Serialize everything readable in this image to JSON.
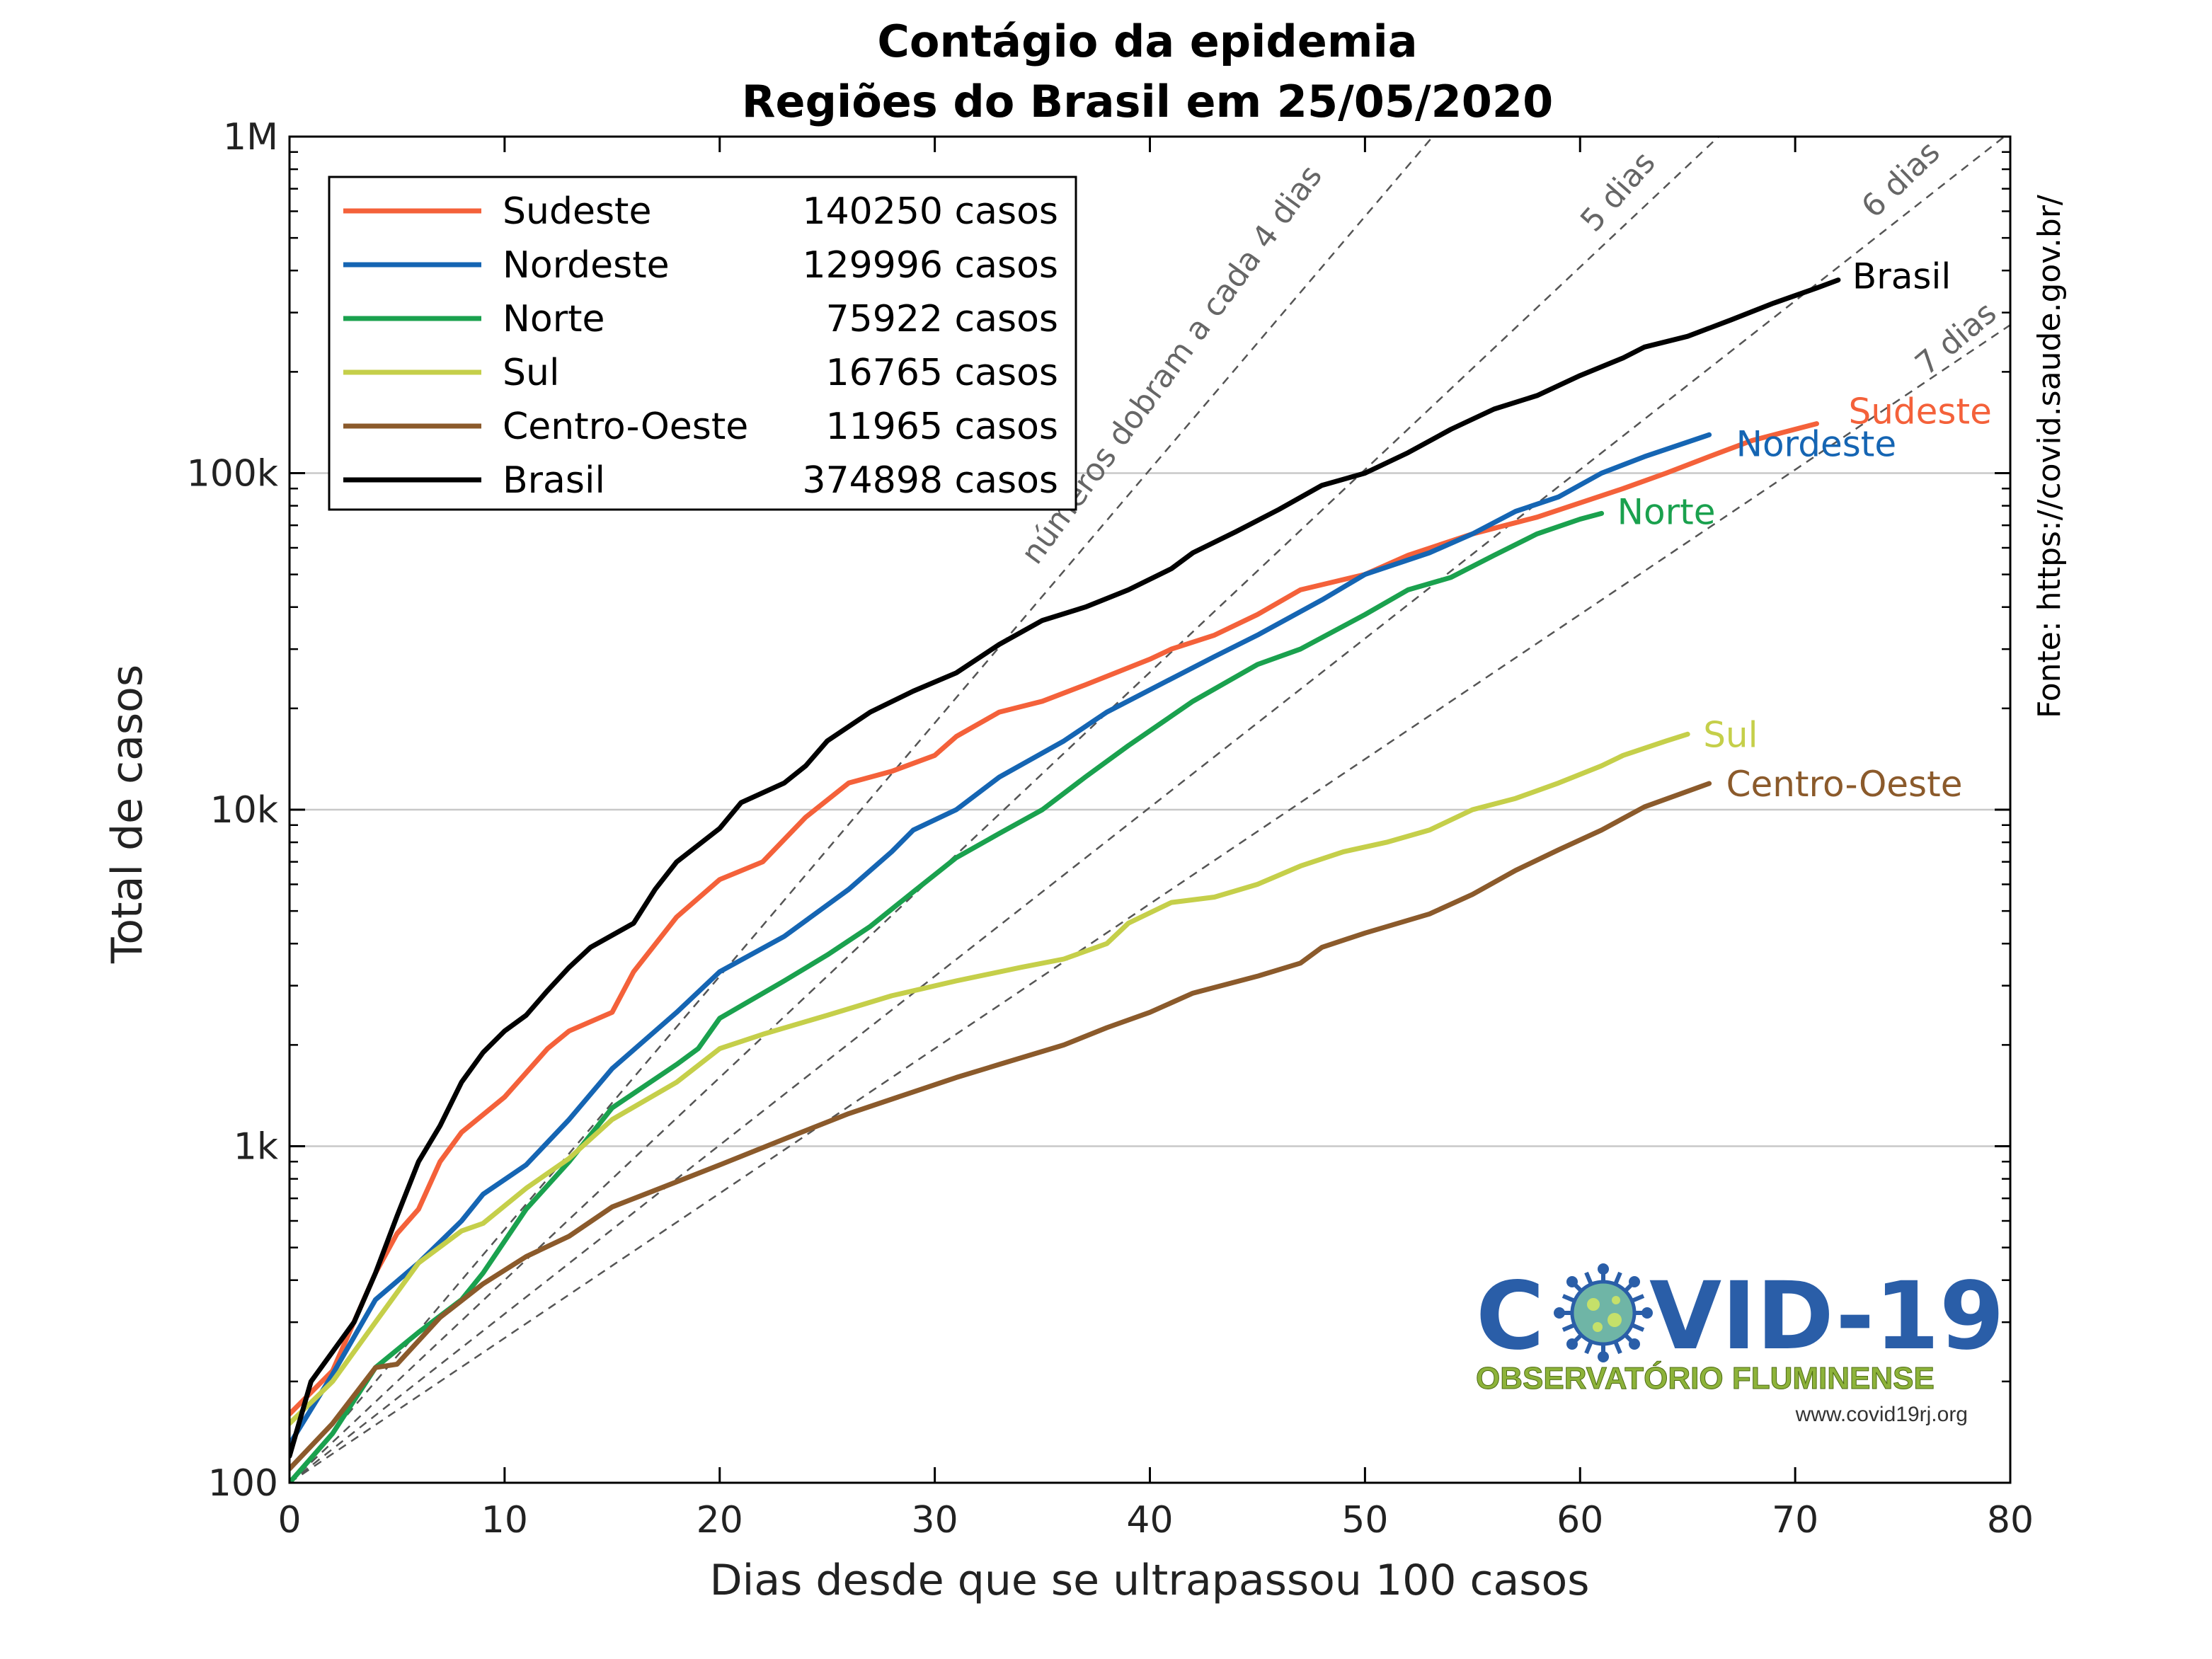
{
  "chart_data": {
    "type": "line",
    "title": "Contágio da epidemia",
    "subtitle": "Regiões do Brasil em 25/05/2020",
    "xlabel": "Dias desde que se ultrapassou 100 casos",
    "ylabel": "Total de casos",
    "xlim": [
      0,
      80
    ],
    "ylim": [
      100,
      1000000
    ],
    "yscale": "log",
    "grid": "horizontal major",
    "x_ticks": [
      "0",
      "10",
      "20",
      "30",
      "40",
      "50",
      "60",
      "70",
      "80"
    ],
    "y_ticks": [
      "100",
      "1k",
      "10k",
      "100k",
      "1M"
    ],
    "legend_position": "top-left",
    "source_note": "Fonte: https://covid.saude.gov.br/",
    "series": [
      {
        "name": "Sudeste",
        "color": "#f4613a",
        "legend_label": "Sudeste",
        "total_label": "140250 casos",
        "end_label": "Sudeste",
        "points": [
          [
            0,
            160
          ],
          [
            2,
            215
          ],
          [
            4,
            420
          ],
          [
            5,
            550
          ],
          [
            6,
            650
          ],
          [
            7,
            900
          ],
          [
            8,
            1100
          ],
          [
            10,
            1400
          ],
          [
            12,
            1950
          ],
          [
            13,
            2200
          ],
          [
            15,
            2500
          ],
          [
            16,
            3300
          ],
          [
            18,
            4800
          ],
          [
            20,
            6200
          ],
          [
            22,
            7000
          ],
          [
            24,
            9500
          ],
          [
            26,
            12000
          ],
          [
            28,
            13000
          ],
          [
            30,
            14500
          ],
          [
            31,
            16500
          ],
          [
            33,
            19500
          ],
          [
            35,
            21000
          ],
          [
            37,
            23500
          ],
          [
            40,
            28000
          ],
          [
            41,
            30000
          ],
          [
            43,
            33000
          ],
          [
            45,
            38000
          ],
          [
            47,
            45000
          ],
          [
            50,
            50000
          ],
          [
            52,
            57000
          ],
          [
            55,
            66000
          ],
          [
            58,
            74000
          ],
          [
            62,
            90000
          ],
          [
            64,
            100000
          ],
          [
            66,
            112000
          ],
          [
            68,
            125000
          ],
          [
            70,
            135000
          ],
          [
            71,
            140250
          ]
        ]
      },
      {
        "name": "Nordeste",
        "color": "#1565b3",
        "legend_label": "Nordeste",
        "total_label": "129996 casos",
        "end_label": "Nordeste",
        "points": [
          [
            0,
            130
          ],
          [
            2,
            210
          ],
          [
            4,
            350
          ],
          [
            6,
            450
          ],
          [
            8,
            600
          ],
          [
            9,
            720
          ],
          [
            11,
            880
          ],
          [
            13,
            1200
          ],
          [
            15,
            1700
          ],
          [
            18,
            2500
          ],
          [
            20,
            3300
          ],
          [
            23,
            4200
          ],
          [
            26,
            5800
          ],
          [
            28,
            7500
          ],
          [
            29,
            8700
          ],
          [
            31,
            10000
          ],
          [
            33,
            12500
          ],
          [
            36,
            16000
          ],
          [
            38,
            19500
          ],
          [
            41,
            24500
          ],
          [
            43,
            28500
          ],
          [
            45,
            33000
          ],
          [
            48,
            42000
          ],
          [
            50,
            50000
          ],
          [
            53,
            58000
          ],
          [
            55,
            66000
          ],
          [
            57,
            77000
          ],
          [
            59,
            85000
          ],
          [
            61,
            100000
          ],
          [
            63,
            112000
          ],
          [
            66,
            129996
          ]
        ]
      },
      {
        "name": "Norte",
        "color": "#1aa14e",
        "legend_label": "Norte",
        "total_label": "75922 casos",
        "end_label": "Norte",
        "points": [
          [
            0,
            100
          ],
          [
            2,
            140
          ],
          [
            4,
            220
          ],
          [
            6,
            280
          ],
          [
            8,
            350
          ],
          [
            9,
            420
          ],
          [
            11,
            650
          ],
          [
            13,
            900
          ],
          [
            15,
            1300
          ],
          [
            18,
            1750
          ],
          [
            19,
            1950
          ],
          [
            20,
            2400
          ],
          [
            23,
            3100
          ],
          [
            25,
            3700
          ],
          [
            27,
            4500
          ],
          [
            29,
            5700
          ],
          [
            31,
            7200
          ],
          [
            33,
            8500
          ],
          [
            35,
            10000
          ],
          [
            37,
            12500
          ],
          [
            39,
            15500
          ],
          [
            42,
            21000
          ],
          [
            45,
            27000
          ],
          [
            47,
            30000
          ],
          [
            50,
            38000
          ],
          [
            52,
            45000
          ],
          [
            54,
            49000
          ],
          [
            56,
            57000
          ],
          [
            58,
            66000
          ],
          [
            60,
            73000
          ],
          [
            61,
            75922
          ]
        ]
      },
      {
        "name": "Sul",
        "color": "#c5cf4a",
        "legend_label": "Sul",
        "total_label": "16765 casos",
        "end_label": "Sul",
        "points": [
          [
            0,
            150
          ],
          [
            2,
            200
          ],
          [
            4,
            300
          ],
          [
            6,
            450
          ],
          [
            8,
            560
          ],
          [
            9,
            590
          ],
          [
            11,
            750
          ],
          [
            13,
            920
          ],
          [
            15,
            1200
          ],
          [
            18,
            1550
          ],
          [
            20,
            1950
          ],
          [
            22,
            2150
          ],
          [
            25,
            2450
          ],
          [
            28,
            2800
          ],
          [
            31,
            3100
          ],
          [
            34,
            3400
          ],
          [
            36,
            3600
          ],
          [
            38,
            4000
          ],
          [
            39,
            4600
          ],
          [
            41,
            5300
          ],
          [
            43,
            5500
          ],
          [
            45,
            6000
          ],
          [
            47,
            6800
          ],
          [
            49,
            7500
          ],
          [
            51,
            8000
          ],
          [
            53,
            8700
          ],
          [
            55,
            10000
          ],
          [
            57,
            10800
          ],
          [
            59,
            12000
          ],
          [
            61,
            13500
          ],
          [
            62,
            14500
          ],
          [
            64,
            16000
          ],
          [
            65,
            16765
          ]
        ]
      },
      {
        "name": "Centro-Oeste",
        "color": "#8b5a2b",
        "legend_label": "Centro-Oeste",
        "total_label": "11965 casos",
        "end_label": "Centro-Oeste",
        "points": [
          [
            0,
            110
          ],
          [
            2,
            150
          ],
          [
            4,
            220
          ],
          [
            5,
            225
          ],
          [
            7,
            310
          ],
          [
            9,
            390
          ],
          [
            11,
            470
          ],
          [
            13,
            540
          ],
          [
            15,
            660
          ],
          [
            17,
            740
          ],
          [
            20,
            880
          ],
          [
            23,
            1050
          ],
          [
            26,
            1250
          ],
          [
            29,
            1450
          ],
          [
            31,
            1600
          ],
          [
            33,
            1750
          ],
          [
            36,
            2000
          ],
          [
            38,
            2250
          ],
          [
            40,
            2500
          ],
          [
            42,
            2850
          ],
          [
            45,
            3200
          ],
          [
            47,
            3500
          ],
          [
            48,
            3900
          ],
          [
            50,
            4300
          ],
          [
            53,
            4900
          ],
          [
            55,
            5600
          ],
          [
            57,
            6600
          ],
          [
            59,
            7600
          ],
          [
            61,
            8700
          ],
          [
            63,
            10200
          ],
          [
            66,
            11965
          ]
        ]
      },
      {
        "name": "Brasil",
        "color": "#000000",
        "legend_label": "Brasil",
        "total_label": "374898 casos",
        "end_label": "Brasil",
        "points": [
          [
            0,
            120
          ],
          [
            1,
            200
          ],
          [
            3,
            300
          ],
          [
            4,
            420
          ],
          [
            5,
            620
          ],
          [
            6,
            900
          ],
          [
            7,
            1150
          ],
          [
            8,
            1550
          ],
          [
            9,
            1900
          ],
          [
            10,
            2200
          ],
          [
            11,
            2450
          ],
          [
            12,
            2900
          ],
          [
            13,
            3400
          ],
          [
            14,
            3900
          ],
          [
            16,
            4600
          ],
          [
            17,
            5800
          ],
          [
            18,
            7000
          ],
          [
            20,
            8800
          ],
          [
            21,
            10500
          ],
          [
            23,
            12000
          ],
          [
            24,
            13500
          ],
          [
            25,
            16000
          ],
          [
            27,
            19500
          ],
          [
            29,
            22500
          ],
          [
            31,
            25500
          ],
          [
            33,
            31000
          ],
          [
            35,
            36500
          ],
          [
            37,
            40000
          ],
          [
            39,
            45000
          ],
          [
            41,
            52000
          ],
          [
            42,
            58000
          ],
          [
            44,
            67000
          ],
          [
            46,
            78000
          ],
          [
            48,
            92000
          ],
          [
            50,
            100000
          ],
          [
            52,
            115000
          ],
          [
            54,
            135000
          ],
          [
            56,
            155000
          ],
          [
            58,
            170000
          ],
          [
            60,
            195000
          ],
          [
            62,
            220000
          ],
          [
            63,
            237000
          ],
          [
            65,
            255000
          ],
          [
            67,
            285000
          ],
          [
            69,
            320000
          ],
          [
            71,
            355000
          ],
          [
            72,
            374898
          ]
        ]
      }
    ],
    "reference_lines": [
      {
        "doubling_days": 4,
        "label": "números dobram a cada 4 dias"
      },
      {
        "doubling_days": 5,
        "label": "5 dias"
      },
      {
        "doubling_days": 6,
        "label": "6 dias"
      },
      {
        "doubling_days": 7,
        "label": "7 dias"
      }
    ]
  },
  "logo": {
    "title_left": "C",
    "title_right": "VID-19",
    "subtitle": "OBSERVATÓRIO FLUMINENSE",
    "url": "www.covid19rj.org"
  }
}
